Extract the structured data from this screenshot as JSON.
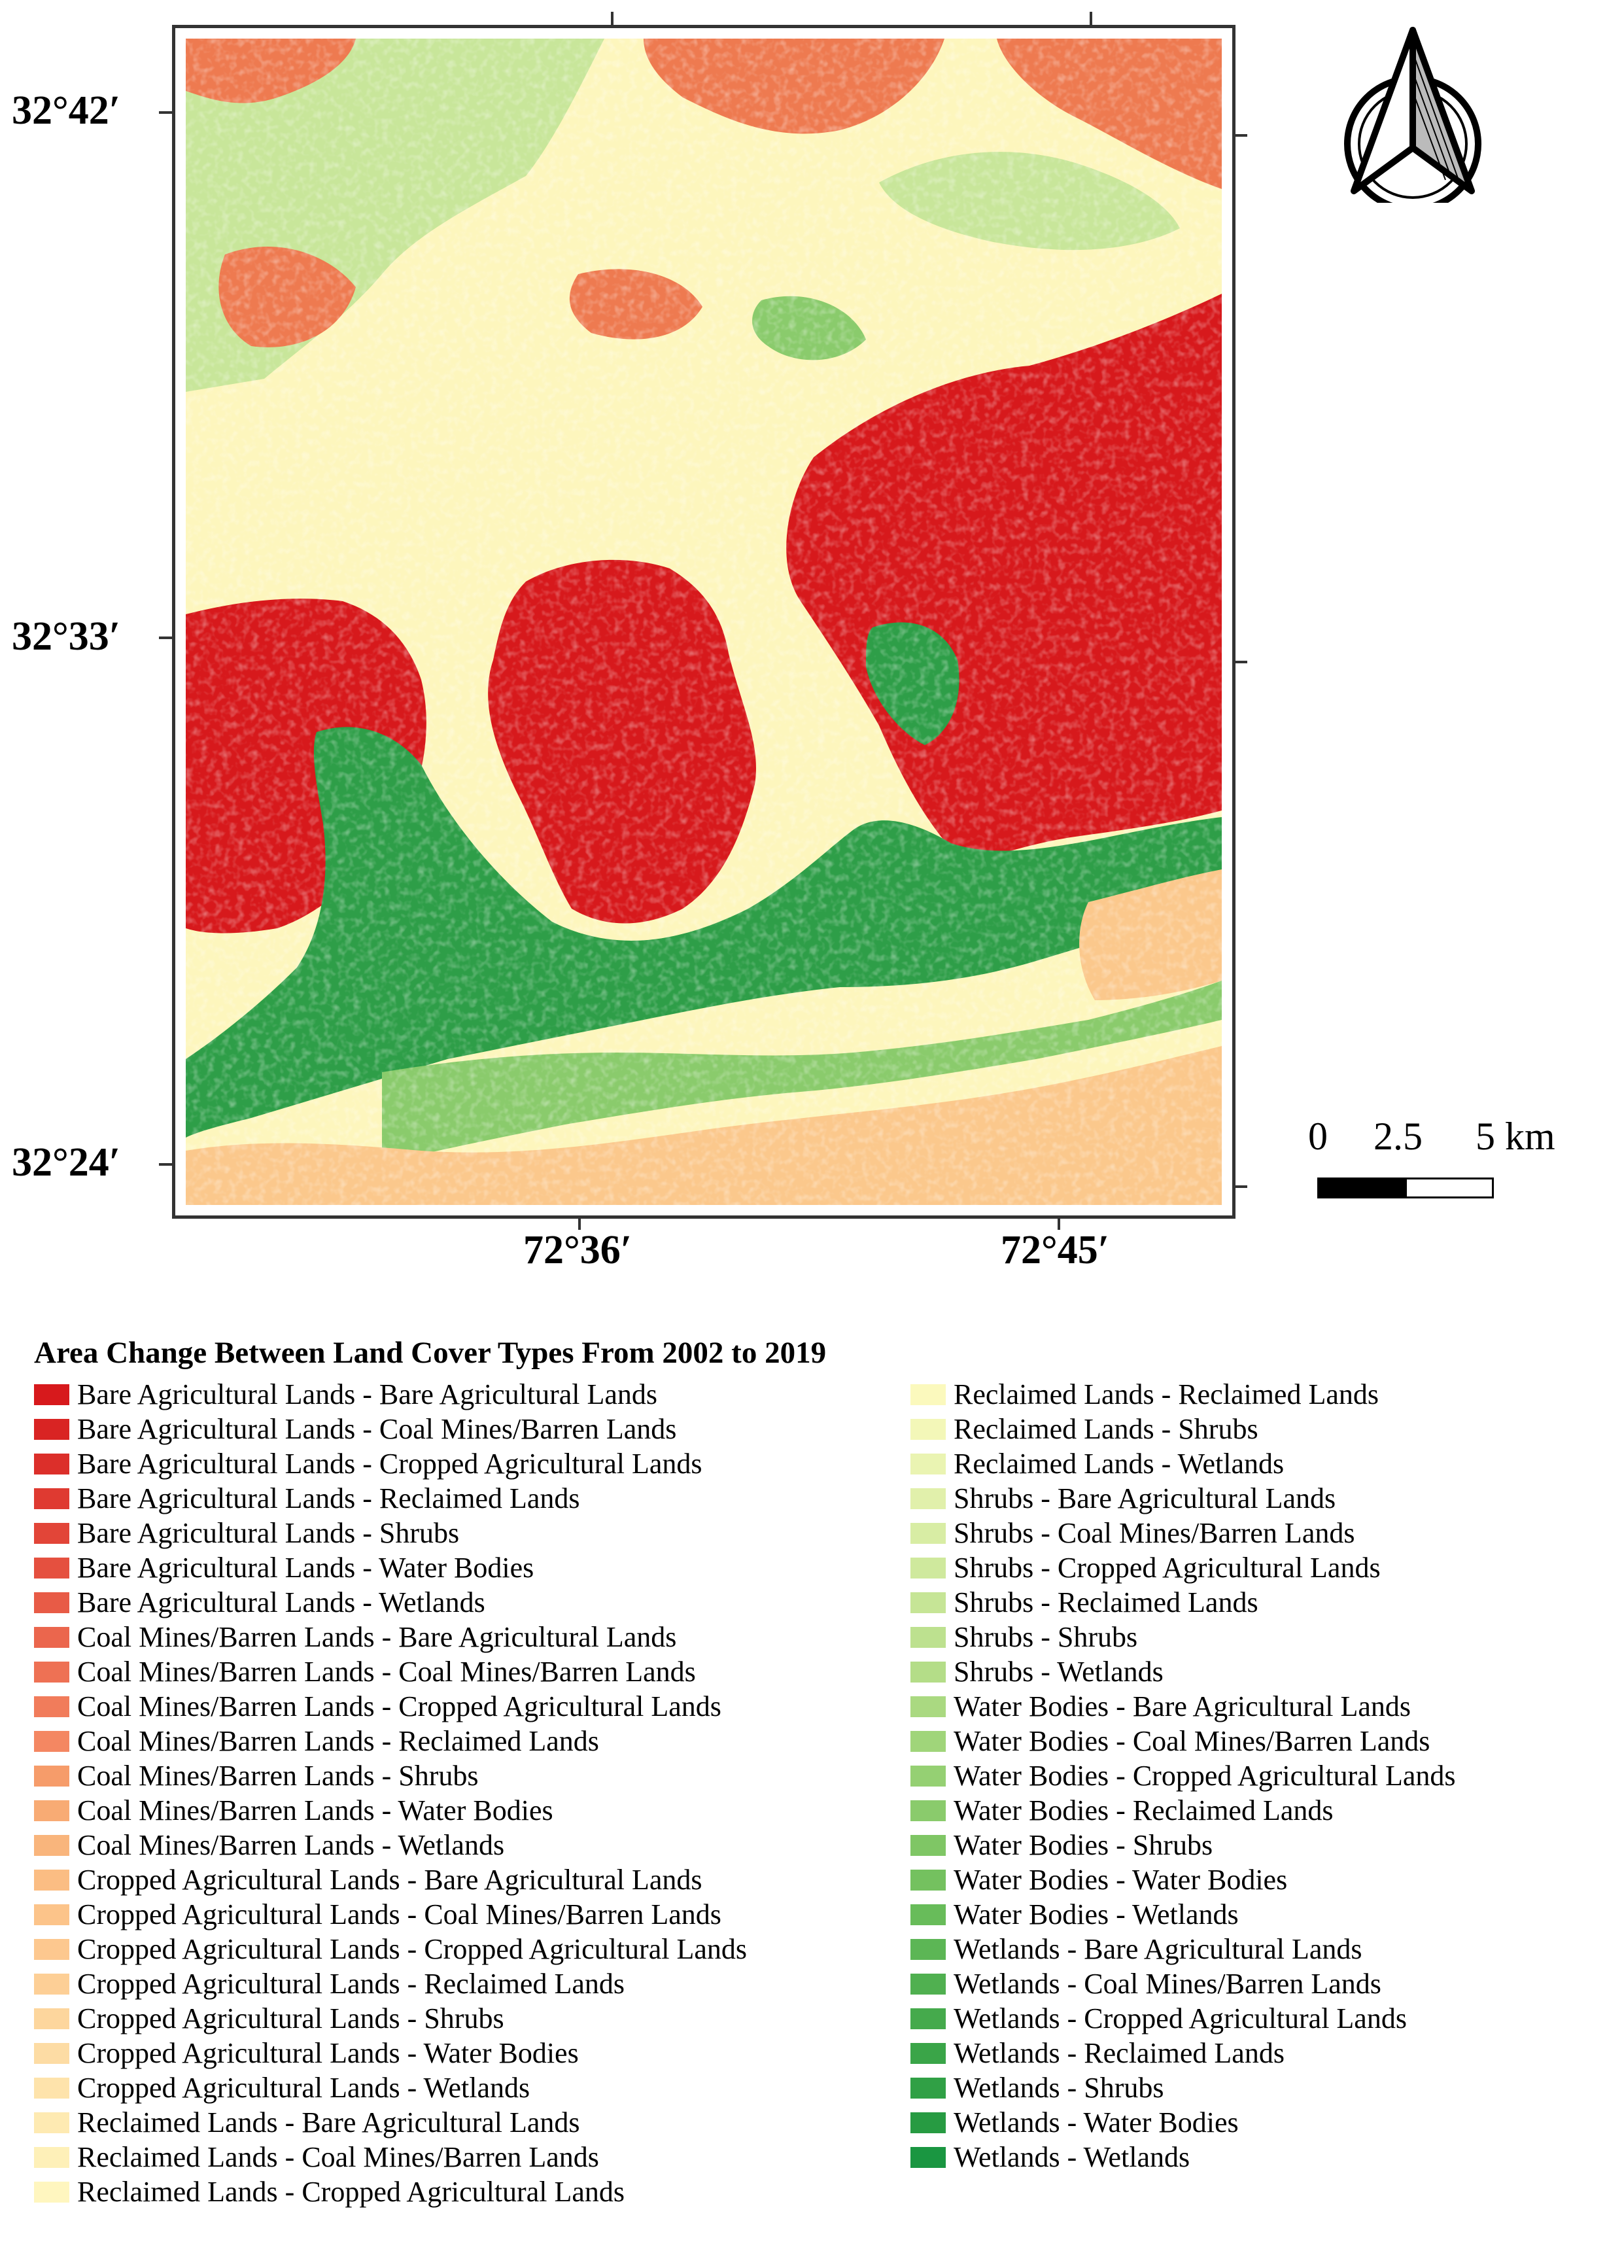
{
  "map": {
    "lat_labels": [
      "32°42′",
      "32°33′",
      "32°24′"
    ],
    "lon_labels": [
      "72°36′",
      "72°45′"
    ]
  },
  "north_arrow": {
    "icon": "north-arrow-icon"
  },
  "scale_bar": {
    "labels": [
      "0",
      "2.5",
      "5 km"
    ]
  },
  "legend": {
    "title": "Area Change Between Land Cover Types From 2002 to 2019",
    "items": [
      {
        "label": "Bare Agricultural Lands - Bare Agricultural Lands",
        "color": "#d7191c"
      },
      {
        "label": "Bare Agricultural Lands - Coal Mines/Barren Lands",
        "color": "#d92423"
      },
      {
        "label": "Bare Agricultural Lands - Cropped Agricultural Lands",
        "color": "#dc2f2a"
      },
      {
        "label": "Bare Agricultural Lands - Reclaimed Lands",
        "color": "#df3a31"
      },
      {
        "label": "Bare Agricultural Lands - Shrubs",
        "color": "#e24538"
      },
      {
        "label": "Bare Agricultural Lands - Water Bodies",
        "color": "#e5503f"
      },
      {
        "label": "Bare Agricultural Lands - Wetlands",
        "color": "#e85b46"
      },
      {
        "label": "Coal Mines/Barren Lands - Bare Agricultural Lands",
        "color": "#eb664d"
      },
      {
        "label": "Coal Mines/Barren Lands - Coal Mines/Barren Lands",
        "color": "#ee7154"
      },
      {
        "label": "Coal Mines/Barren Lands - Cropped Agricultural Lands",
        "color": "#f17c5b"
      },
      {
        "label": "Coal Mines/Barren Lands - Reclaimed Lands",
        "color": "#f48762"
      },
      {
        "label": "Coal Mines/Barren Lands - Shrubs",
        "color": "#f69c6a"
      },
      {
        "label": "Coal Mines/Barren Lands - Water Bodies",
        "color": "#f8ab74"
      },
      {
        "label": "Coal Mines/Barren Lands - Wetlands",
        "color": "#f9b57c"
      },
      {
        "label": "Cropped Agricultural Lands - Bare Agricultural Lands",
        "color": "#fbbd83"
      },
      {
        "label": "Cropped Agricultural Lands - Coal Mines/Barren Lands",
        "color": "#fcc48a"
      },
      {
        "label": "Cropped Agricultural Lands - Cropped Agricultural Lands",
        "color": "#fdc88f"
      },
      {
        "label": "Cropped Agricultural Lands - Reclaimed Lands",
        "color": "#fdcf96"
      },
      {
        "label": "Cropped Agricultural Lands - Shrubs",
        "color": "#fdd69d"
      },
      {
        "label": "Cropped Agricultural Lands - Water Bodies",
        "color": "#fddca4"
      },
      {
        "label": "Cropped Agricultural Lands - Wetlands",
        "color": "#fee3ab"
      },
      {
        "label": "Reclaimed Lands - Bare Agricultural Lands",
        "color": "#feeab2"
      },
      {
        "label": "Reclaimed Lands - Coal Mines/Barren Lands",
        "color": "#fef0b8"
      },
      {
        "label": "Reclaimed Lands - Cropped Agricultural Lands",
        "color": "#fff6bf"
      },
      {
        "label": "Reclaimed Lands - Reclaimed Lands",
        "color": "#fbf9bd"
      },
      {
        "label": "Reclaimed Lands - Shrubs",
        "color": "#f3f7b8"
      },
      {
        "label": "Reclaimed Lands - Wetlands",
        "color": "#eaf4b2"
      },
      {
        "label": "Shrubs - Bare Agricultural Lands",
        "color": "#e1f0ab"
      },
      {
        "label": "Shrubs - Coal Mines/Barren Lands",
        "color": "#d8eda4"
      },
      {
        "label": "Shrubs - Cropped Agricultural Lands",
        "color": "#cfe99d"
      },
      {
        "label": "Shrubs - Reclaimed Lands",
        "color": "#c6e596"
      },
      {
        "label": "Shrubs - Shrubs",
        "color": "#bde18f"
      },
      {
        "label": "Shrubs - Wetlands",
        "color": "#b4dd88"
      },
      {
        "label": "Water Bodies - Bare Agricultural Lands",
        "color": "#aad981"
      },
      {
        "label": "Water Bodies - Coal Mines/Barren Lands",
        "color": "#a0d57a"
      },
      {
        "label": "Water Bodies - Cropped Agricultural Lands",
        "color": "#95d073"
      },
      {
        "label": "Water Bodies - Reclaimed Lands",
        "color": "#8acb6c"
      },
      {
        "label": "Water Bodies - Shrubs",
        "color": "#7fc665"
      },
      {
        "label": "Water Bodies - Water Bodies",
        "color": "#74c15f"
      },
      {
        "label": "Water Bodies - Wetlands",
        "color": "#68bc5a"
      },
      {
        "label": "Wetlands - Bare Agricultural Lands",
        "color": "#5cb655"
      },
      {
        "label": "Wetlands - Coal Mines/Barren Lands",
        "color": "#50b050"
      },
      {
        "label": "Wetlands - Cropped Agricultural Lands",
        "color": "#45aa4c"
      },
      {
        "label": "Wetlands - Reclaimed Lands",
        "color": "#3aa548"
      },
      {
        "label": "Wetlands - Shrubs",
        "color": "#30a045"
      },
      {
        "label": "Wetlands - Water Bodies",
        "color": "#279b42"
      },
      {
        "label": "Wetlands - Wetlands",
        "color": "#1a9641"
      }
    ]
  },
  "colors": {
    "dark_red": "#d7191c",
    "orange": "#ee7a50",
    "peach": "#fbc88c",
    "cream": "#fdf6bd",
    "light_green": "#c8e69a",
    "mid_green": "#8acb6c",
    "dark_green": "#2e9e48"
  }
}
